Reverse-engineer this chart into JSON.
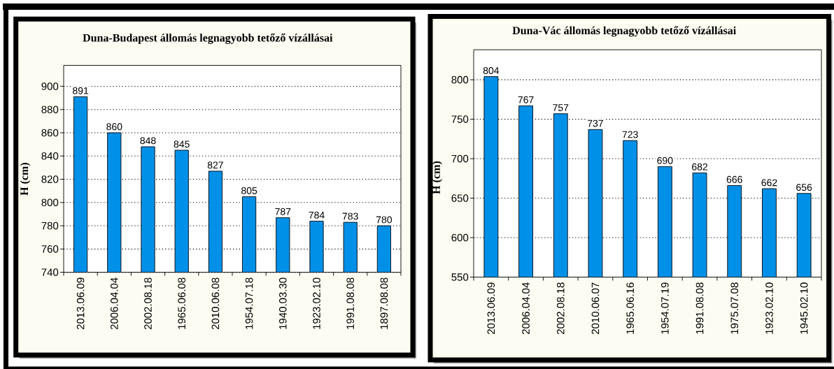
{
  "chart_data": [
    {
      "type": "bar",
      "title": "Duna-Budapest állomás legnagyobb tetőző vízállásai",
      "ylabel": "H (cm)",
      "categories": [
        "2013.06.09",
        "2006.04.04",
        "2002.08.18",
        "1965.06.08",
        "2010.06.08",
        "1954.07.18",
        "1940.03.30",
        "1923.02.10",
        "1991.08.08",
        "1897.08.08"
      ],
      "values": [
        891,
        860,
        848,
        845,
        827,
        805,
        787,
        784,
        783,
        780
      ],
      "color": "#0090e8",
      "ylim": [
        740,
        918
      ],
      "yticks": [
        740,
        760,
        780,
        800,
        820,
        840,
        860,
        880,
        900
      ],
      "grid": "y",
      "data_labels": true
    },
    {
      "type": "bar",
      "title": "Duna-Vác állomás legnagyobb tetőző vízállásai",
      "ylabel": "H (cm)",
      "categories": [
        "2013.06.09",
        "2006.04.04",
        "2002.08.18",
        "2010.06.07",
        "1965.06.16",
        "1954.07.19",
        "1991.08.08",
        "1975.07.08",
        "1923.02.10",
        "1945.02.10"
      ],
      "values": [
        804,
        767,
        757,
        737,
        723,
        690,
        682,
        666,
        662,
        656
      ],
      "color": "#0090e8",
      "ylim": [
        550,
        838
      ],
      "yticks": [
        550,
        600,
        650,
        700,
        750,
        800
      ],
      "grid": "y",
      "data_labels": true
    }
  ]
}
